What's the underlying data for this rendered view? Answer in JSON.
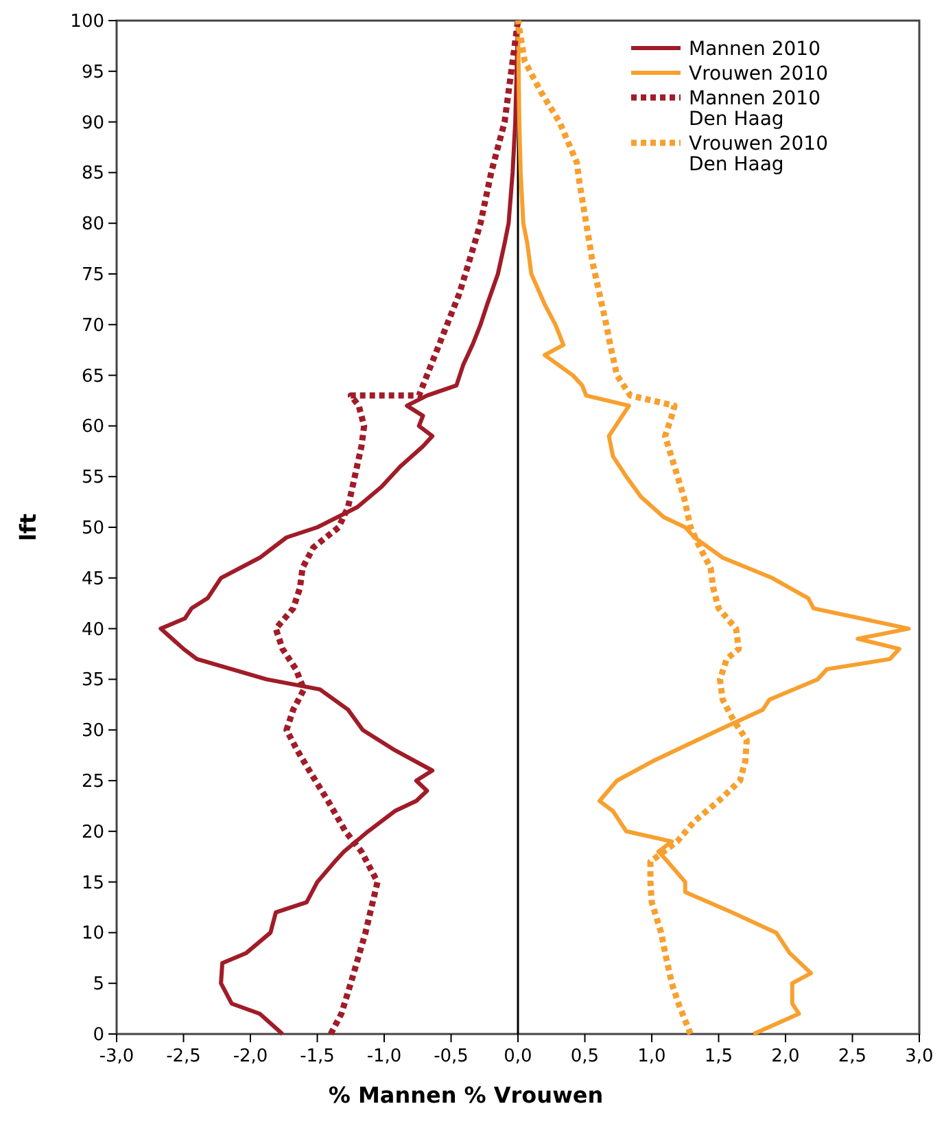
{
  "chart_data": {
    "type": "line",
    "orientation": "horizontal",
    "ylabel": "lft",
    "xlabel": "% Mannen   % Vrouwen",
    "xlim": [
      -3,
      3
    ],
    "xticks": [
      {
        "value": -3,
        "label": "-3,0"
      },
      {
        "value": -2.5,
        "label": "-2,5"
      },
      {
        "value": -2,
        "label": "-2,0"
      },
      {
        "value": -1.5,
        "label": "-1,5"
      },
      {
        "value": -1,
        "label": "-1,0"
      },
      {
        "value": -0.5,
        "label": "-0,5"
      },
      {
        "value": 0,
        "label": "0,0"
      },
      {
        "value": 0.5,
        "label": "0,5"
      },
      {
        "value": 1,
        "label": "1,0"
      },
      {
        "value": 1.5,
        "label": "1,5"
      },
      {
        "value": 2,
        "label": "2,0"
      },
      {
        "value": 2.5,
        "label": "2,5"
      },
      {
        "value": 3,
        "label": "3,0"
      }
    ],
    "ylim": [
      0,
      100
    ],
    "yticks": [
      0,
      5,
      10,
      15,
      20,
      25,
      30,
      35,
      40,
      45,
      50,
      55,
      60,
      65,
      70,
      75,
      80,
      85,
      90,
      95,
      100
    ],
    "grid": false,
    "legend": "top right",
    "ref_lines": [
      {
        "axis": "x",
        "value": 0,
        "color": "#000000"
      }
    ],
    "series": [
      {
        "name": "Mannen 2010",
        "color": "#a01c28",
        "line_style": "solid",
        "x": [
          0,
          2,
          3,
          5,
          7,
          8,
          10,
          12,
          13,
          15,
          17,
          18,
          20,
          22,
          23,
          24,
          25,
          26,
          28,
          30,
          32,
          34,
          35,
          37,
          38,
          40,
          41,
          42,
          43,
          45,
          47,
          49,
          50,
          52,
          54,
          56,
          58,
          59,
          60,
          61,
          62,
          63,
          64,
          66,
          68,
          70,
          72,
          75,
          78,
          80,
          85,
          90,
          95,
          100
        ],
        "values": [
          -1.76,
          -1.93,
          -2.14,
          -2.22,
          -2.21,
          -2.03,
          -1.85,
          -1.81,
          -1.58,
          -1.5,
          -1.37,
          -1.3,
          -1.12,
          -0.92,
          -0.76,
          -0.68,
          -0.76,
          -0.64,
          -0.92,
          -1.16,
          -1.27,
          -1.48,
          -1.88,
          -2.4,
          -2.5,
          -2.67,
          -2.49,
          -2.44,
          -2.32,
          -2.22,
          -1.93,
          -1.73,
          -1.5,
          -1.2,
          -1.02,
          -0.88,
          -0.71,
          -0.64,
          -0.74,
          -0.71,
          -0.83,
          -0.68,
          -0.46,
          -0.41,
          -0.34,
          -0.28,
          -0.23,
          -0.15,
          -0.1,
          -0.07,
          -0.04,
          -0.02,
          -0.01,
          0
        ]
      },
      {
        "name": "Vrouwen 2010",
        "color": "#f7a030",
        "line_style": "solid",
        "x": [
          0,
          2,
          3,
          5,
          6,
          8,
          10,
          12,
          14,
          15,
          17,
          18,
          19,
          20,
          22,
          23,
          25,
          27,
          30,
          32,
          33,
          35,
          36,
          37,
          38,
          39,
          40,
          42,
          43,
          45,
          47,
          49,
          50,
          51,
          53,
          55,
          57,
          59,
          61,
          62,
          63,
          64,
          65,
          67,
          68,
          70,
          72,
          75,
          78,
          80,
          85,
          90,
          100
        ],
        "values": [
          1.76,
          2.1,
          2.05,
          2.05,
          2.19,
          2.03,
          1.93,
          1.6,
          1.25,
          1.25,
          1.12,
          1.05,
          1.15,
          0.81,
          0.71,
          0.61,
          0.74,
          1.02,
          1.5,
          1.83,
          1.88,
          2.24,
          2.31,
          2.78,
          2.85,
          2.54,
          2.92,
          2.21,
          2.17,
          1.9,
          1.53,
          1.32,
          1.25,
          1.09,
          0.92,
          0.81,
          0.71,
          0.68,
          0.78,
          0.83,
          0.51,
          0.48,
          0.41,
          0.2,
          0.34,
          0.28,
          0.2,
          0.1,
          0.07,
          0.04,
          0.02,
          0.01,
          0
        ]
      },
      {
        "name": "Mannen 2010\nDen Haag",
        "color": "#a01c28",
        "line_style": "dotted",
        "x": [
          0,
          2,
          5,
          10,
          15,
          18,
          20,
          23,
          26,
          28,
          30,
          32,
          34,
          36,
          38,
          40,
          42,
          44,
          46,
          48,
          50,
          52,
          55,
          58,
          60,
          62,
          63,
          63,
          65,
          68,
          70,
          73,
          76,
          80,
          85,
          90,
          95,
          100
        ],
        "values": [
          -1.4,
          -1.32,
          -1.25,
          -1.14,
          -1.05,
          -1.17,
          -1.29,
          -1.42,
          -1.56,
          -1.65,
          -1.73,
          -1.68,
          -1.6,
          -1.66,
          -1.76,
          -1.81,
          -1.68,
          -1.63,
          -1.61,
          -1.53,
          -1.34,
          -1.27,
          -1.22,
          -1.17,
          -1.15,
          -1.19,
          -1.25,
          -0.74,
          -0.68,
          -0.59,
          -0.53,
          -0.44,
          -0.37,
          -0.28,
          -0.2,
          -0.1,
          -0.05,
          0
        ]
      },
      {
        "name": "Vrouwen 2010\nDen Haag",
        "color": "#f7a030",
        "line_style": "dotted",
        "x": [
          0,
          3,
          5,
          8,
          10,
          13,
          15,
          17,
          19,
          21,
          23,
          25,
          27,
          29,
          31,
          33,
          35,
          37,
          38,
          40,
          42,
          44,
          46,
          48,
          50,
          53,
          56,
          59,
          61,
          62,
          63,
          65,
          68,
          70,
          73,
          76,
          80,
          84,
          86,
          90,
          93,
          96,
          100
        ],
        "values": [
          1.29,
          1.2,
          1.15,
          1.1,
          1.07,
          1.0,
          0.99,
          0.99,
          1.19,
          1.32,
          1.5,
          1.66,
          1.7,
          1.71,
          1.61,
          1.53,
          1.51,
          1.56,
          1.65,
          1.63,
          1.5,
          1.46,
          1.44,
          1.36,
          1.29,
          1.24,
          1.17,
          1.1,
          1.15,
          1.17,
          0.84,
          0.74,
          0.69,
          0.66,
          0.61,
          0.56,
          0.51,
          0.46,
          0.44,
          0.31,
          0.17,
          0.05,
          0
        ]
      }
    ]
  }
}
